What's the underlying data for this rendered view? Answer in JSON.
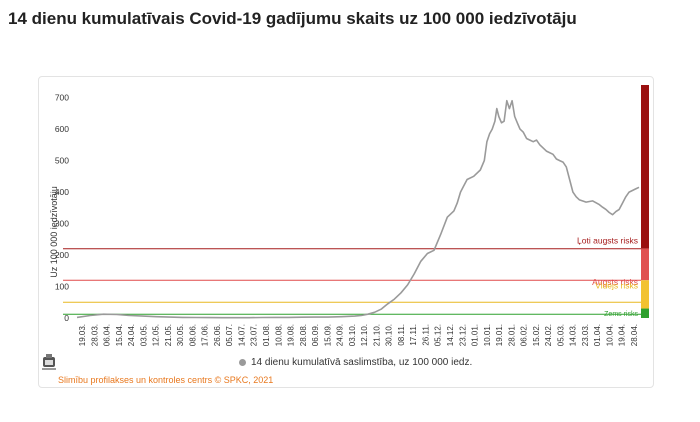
{
  "page": {
    "title": "14 dienu kumulatīvais Covid-19 gadījumu skaits uz 100 000 iedzīvotāju",
    "source": "Slimību profilakses un kontroles centrs © SPKC, 2021"
  },
  "chart_data": {
    "type": "line",
    "title": "14 dienu kumulatīvais Covid-19 gadījumu skaits uz 100 000 iedzīvotāju",
    "ylabel": "Uz 100 000 iedzīvotāju",
    "xlabel": "",
    "ylim": [
      0,
      700
    ],
    "yticks": [
      0,
      100,
      200,
      300,
      400,
      500,
      600,
      700
    ],
    "grid": false,
    "legend_placement": "bottom",
    "series": [
      {
        "name": "14 dienu kumulatīvā saslimstība, uz 100 000 iedz.",
        "color": "#9a9a9a",
        "points": [
          [
            0,
            2
          ],
          [
            2,
            8
          ],
          [
            4,
            12
          ],
          [
            6,
            11
          ],
          [
            8,
            8
          ],
          [
            10,
            6
          ],
          [
            12,
            4
          ],
          [
            14,
            3
          ],
          [
            16,
            2
          ],
          [
            18,
            1.5
          ],
          [
            20,
            1.2
          ],
          [
            22,
            1
          ],
          [
            24,
            1
          ],
          [
            26,
            1
          ],
          [
            28,
            1.5
          ],
          [
            30,
            2
          ],
          [
            32,
            2
          ],
          [
            34,
            2.5
          ],
          [
            36,
            3
          ],
          [
            38,
            3
          ],
          [
            40,
            4
          ],
          [
            42,
            6
          ],
          [
            43,
            8
          ],
          [
            44,
            12
          ],
          [
            45,
            18
          ],
          [
            46,
            28
          ],
          [
            47,
            45
          ],
          [
            48,
            60
          ],
          [
            49,
            80
          ],
          [
            50,
            105
          ],
          [
            51,
            140
          ],
          [
            52,
            180
          ],
          [
            53,
            205
          ],
          [
            54,
            215
          ],
          [
            55,
            265
          ],
          [
            56,
            320
          ],
          [
            57,
            340
          ],
          [
            57.5,
            365
          ],
          [
            58,
            400
          ],
          [
            58.5,
            420
          ],
          [
            59,
            440
          ],
          [
            60,
            450
          ],
          [
            61,
            470
          ],
          [
            61.6,
            500
          ],
          [
            62,
            560
          ],
          [
            62.4,
            585
          ],
          [
            62.8,
            600
          ],
          [
            63.2,
            625
          ],
          [
            63.5,
            665
          ],
          [
            63.8,
            640
          ],
          [
            64.2,
            620
          ],
          [
            64.6,
            625
          ],
          [
            65,
            690
          ],
          [
            65.4,
            665
          ],
          [
            65.8,
            690
          ],
          [
            66.2,
            640
          ],
          [
            66.6,
            620
          ],
          [
            67,
            600
          ],
          [
            67.5,
            590
          ],
          [
            68,
            570
          ],
          [
            68.5,
            565
          ],
          [
            69,
            560
          ],
          [
            69.5,
            565
          ],
          [
            70,
            550
          ],
          [
            71,
            530
          ],
          [
            72,
            520
          ],
          [
            72.5,
            505
          ],
          [
            73,
            500
          ],
          [
            73.5,
            495
          ],
          [
            74,
            480
          ],
          [
            74.5,
            440
          ],
          [
            75,
            400
          ],
          [
            75.5,
            385
          ],
          [
            76,
            375
          ],
          [
            77,
            368
          ],
          [
            78,
            372
          ],
          [
            79,
            360
          ],
          [
            79.5,
            352
          ],
          [
            80,
            345
          ],
          [
            80.5,
            335
          ],
          [
            81,
            328
          ],
          [
            81.5,
            338
          ],
          [
            82,
            345
          ],
          [
            82.5,
            365
          ],
          [
            83,
            385
          ],
          [
            83.5,
            400
          ],
          [
            84,
            405
          ],
          [
            84.5,
            410
          ],
          [
            85,
            415
          ]
        ]
      }
    ],
    "x_tick_labels": [
      "19.03.",
      "28.03.",
      "06.04.",
      "15.04.",
      "24.04.",
      "03.05.",
      "12.05.",
      "21.05.",
      "30.05.",
      "08.06.",
      "17.06.",
      "26.06.",
      "05.07.",
      "14.07.",
      "23.07.",
      "01.08.",
      "10.08.",
      "19.08.",
      "28.08.",
      "06.09.",
      "15.09.",
      "24.09.",
      "03.10.",
      "12.10.",
      "21.10.",
      "30.10.",
      "08.11.",
      "17.11.",
      "26.11.",
      "05.12.",
      "14.12.",
      "23.12.",
      "01.01.",
      "10.01.",
      "19.01.",
      "28.01.",
      "06.02.",
      "15.02.",
      "24.02.",
      "05.03.",
      "14.03.",
      "23.03.",
      "01.04.",
      "10.04.",
      "19.04.",
      "28.04."
    ],
    "thresholds": [
      {
        "label": "Ļoti augsts risks",
        "value": 220,
        "color": "#a61c1c"
      },
      {
        "label": "Augsts risks",
        "value": 120,
        "color": "#e04a4a"
      },
      {
        "label": "Vidējs risks",
        "value": 50,
        "color": "#e8b820"
      },
      {
        "label": "Zems risks",
        "value": 0,
        "color": "#2e9e2e"
      }
    ],
    "risk_bar": [
      {
        "from": 220,
        "to": 740,
        "color": "#9a1010"
      },
      {
        "from": 120,
        "to": 220,
        "color": "#e05050"
      },
      {
        "from": 30,
        "to": 120,
        "color": "#f2c230"
      },
      {
        "from": 0,
        "to": 30,
        "color": "#2ea02e"
      }
    ]
  }
}
